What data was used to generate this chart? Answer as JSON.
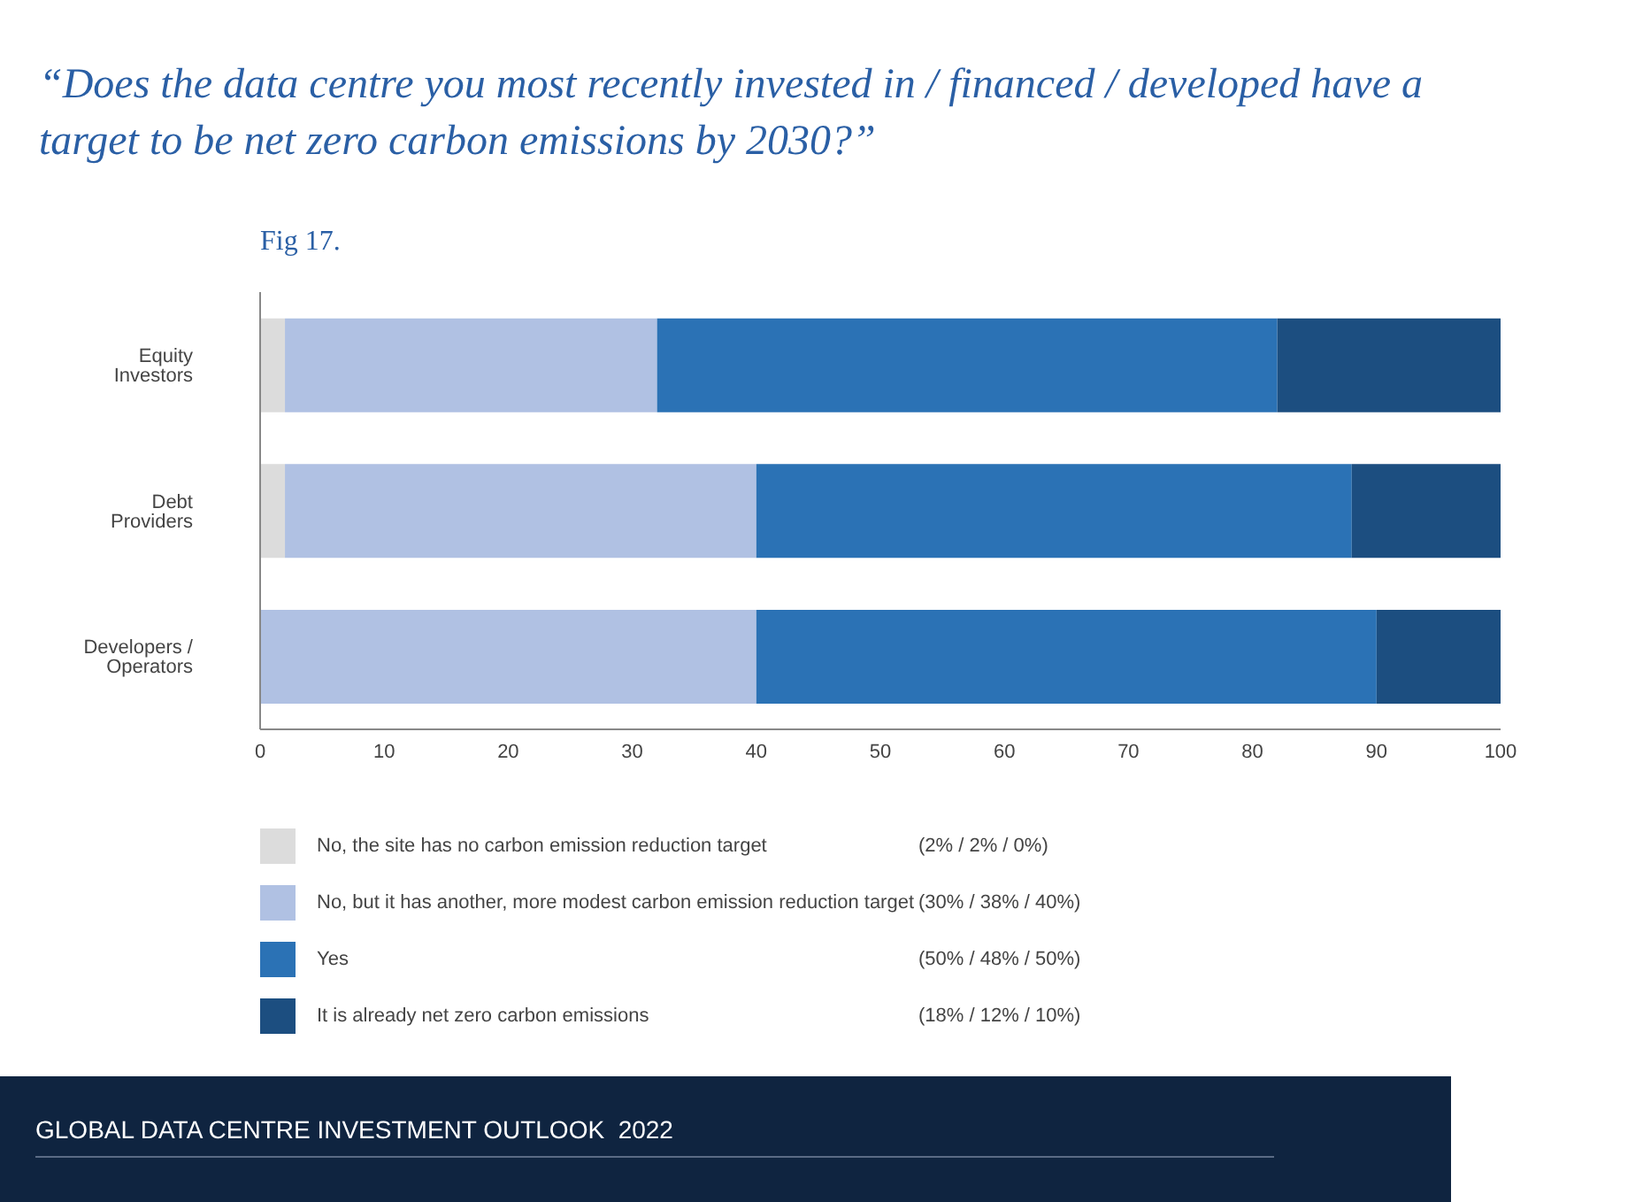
{
  "chart_data": {
    "type": "bar",
    "orientation": "horizontal",
    "stacked": true,
    "title": "“Does the data centre you most recently invested in / financed / developed have a target to be net zero carbon emissions by 2030?”",
    "subtitle": "Fig 17.",
    "categories": [
      "Equity Investors",
      "Debt Providers",
      "Developers / Operators"
    ],
    "series": [
      {
        "name": "No, the site has no carbon emission reduction target",
        "color": "#dcdcdc",
        "values": [
          2,
          2,
          0
        ]
      },
      {
        "name": "No, but it has another, more modest carbon emission reduction target",
        "color": "#b0c1e3",
        "values": [
          30,
          38,
          40
        ]
      },
      {
        "name": "Yes",
        "color": "#2b72b5",
        "values": [
          50,
          48,
          50
        ]
      },
      {
        "name": "It is already net zero carbon emissions",
        "color": "#1c4e80",
        "values": [
          18,
          12,
          10
        ]
      }
    ],
    "xlim": [
      0,
      100
    ],
    "xticks": [
      0,
      10,
      20,
      30,
      40,
      50,
      60,
      70,
      80,
      90,
      100
    ],
    "grid": false,
    "legend": "bottom",
    "annotations": [
      "(2% / 2% / 0%)",
      "(30% / 38% / 40%)",
      "(50% / 48% / 50%)",
      "(18% / 12% / 10%)",
      "GLOBAL DATA CENTRE INVESTMENT OUTLOOK  2022"
    ]
  }
}
